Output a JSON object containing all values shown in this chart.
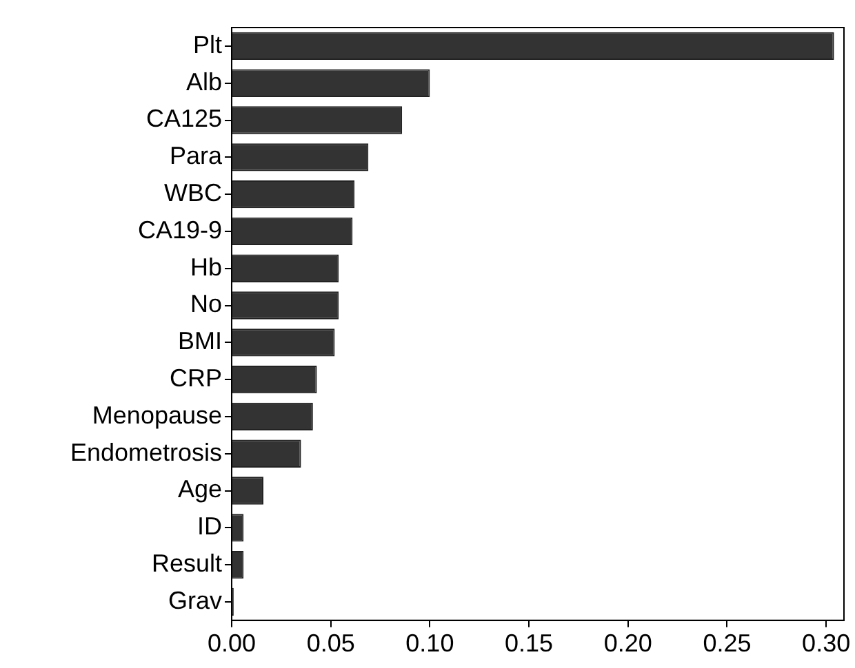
{
  "chart_data": {
    "type": "bar",
    "orientation": "horizontal",
    "categories": [
      "Plt",
      "Alb",
      "CA125",
      "Para",
      "WBC",
      "CA19-9",
      "Hb",
      "No",
      "BMI",
      "CRP",
      "Menopause",
      "Endometrosis",
      "Age",
      "ID",
      "Result",
      "Grav"
    ],
    "values": [
      0.304,
      0.1,
      0.086,
      0.069,
      0.062,
      0.061,
      0.054,
      0.054,
      0.052,
      0.043,
      0.041,
      0.035,
      0.016,
      0.006,
      0.006,
      0.001
    ],
    "color": "#333333",
    "xlim": [
      0,
      0.309
    ],
    "xticks": [
      {
        "value": 0,
        "label": "0.00"
      },
      {
        "value": 0.05,
        "label": "0.05"
      },
      {
        "value": 0.1,
        "label": "0.10"
      },
      {
        "value": 0.15,
        "label": "0.15"
      },
      {
        "value": 0.2,
        "label": "0.20"
      },
      {
        "value": 0.25,
        "label": "0.25"
      },
      {
        "value": 0.3,
        "label": "0.30"
      }
    ],
    "grid": false,
    "legend": false
  }
}
